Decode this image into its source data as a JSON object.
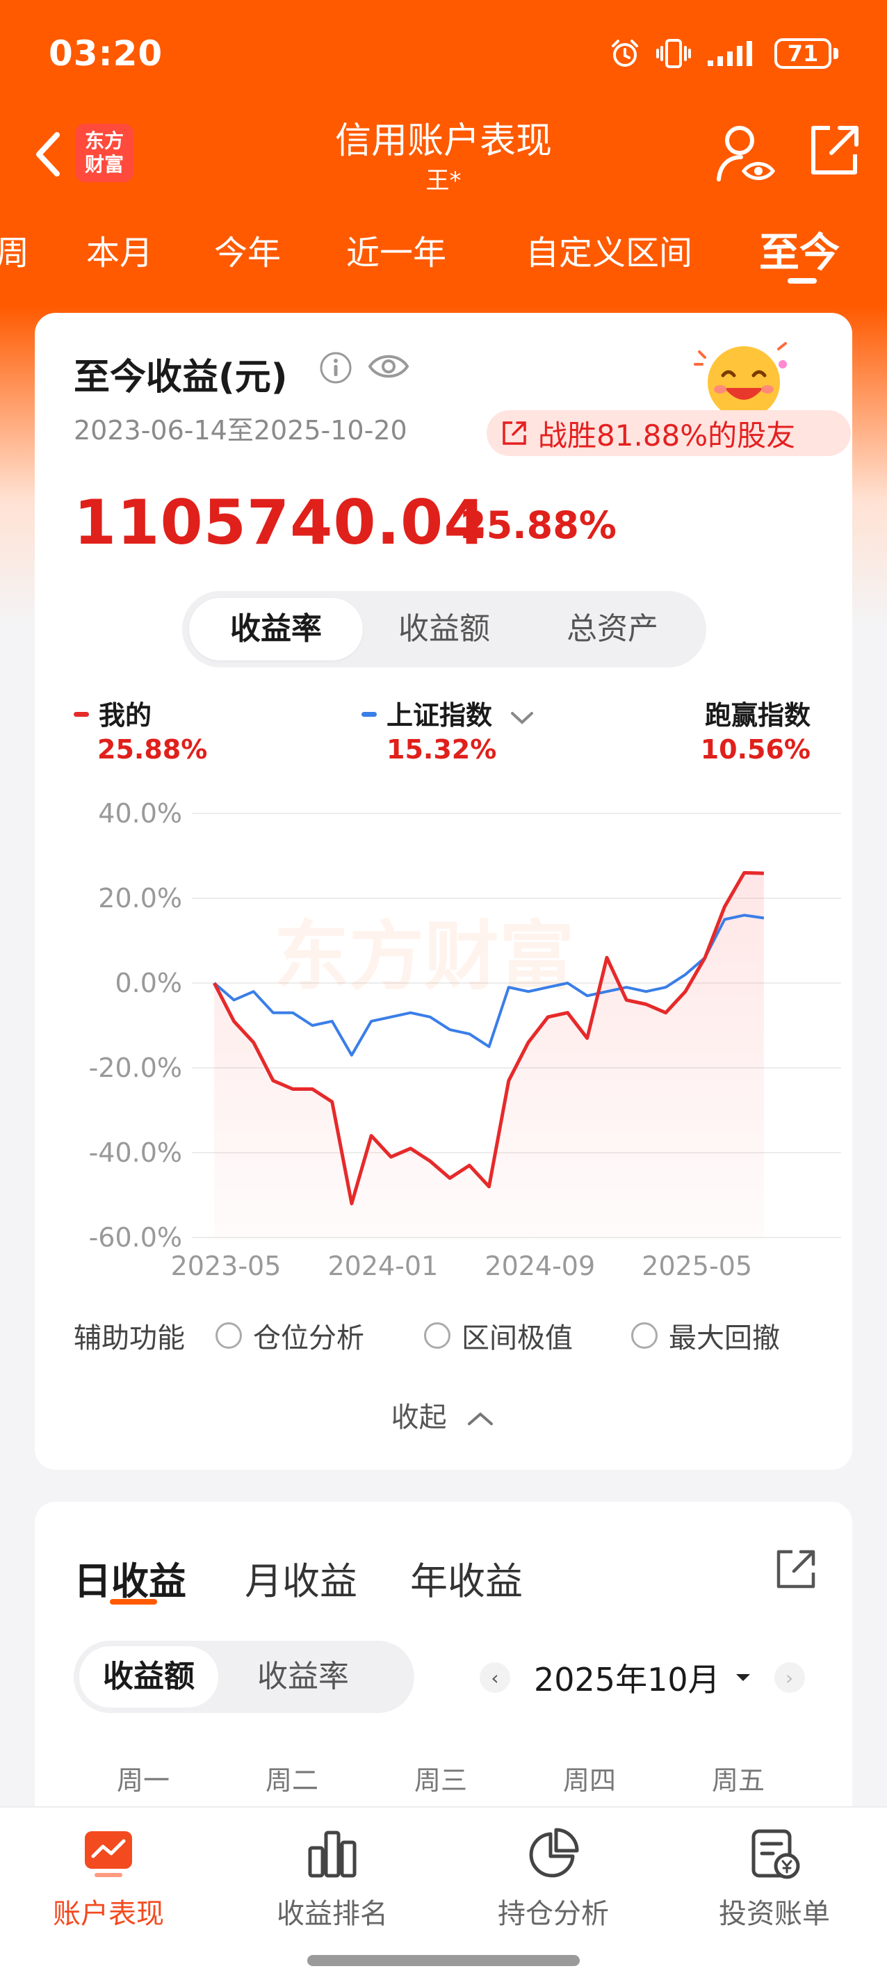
{
  "status_bar": {
    "time": "03:20",
    "battery": "71"
  },
  "header": {
    "logo_line1": "东方",
    "logo_line2": "财富",
    "title": "信用账户表现",
    "subtitle": "王*"
  },
  "period_tabs": [
    {
      "label": "周"
    },
    {
      "label": "本月"
    },
    {
      "label": "今年"
    },
    {
      "label": "近一年"
    },
    {
      "label": "自定义区间"
    },
    {
      "label": "至今",
      "active": true
    }
  ],
  "summary": {
    "title": "至今收益(元)",
    "date_range": "2023-06-14至2025-10-20",
    "beat_text": "战胜81.88%的股友",
    "amount": "1105740.04",
    "rate": "25.88%"
  },
  "chart_tabs": [
    {
      "label": "收益率",
      "active": true
    },
    {
      "label": "收益额"
    },
    {
      "label": "总资产"
    }
  ],
  "legend": {
    "mine": {
      "label": "我的",
      "value": "25.88%",
      "color": "#e62a2a"
    },
    "index": {
      "label": "上证指数",
      "value": "15.32%",
      "color": "#3a7ee8"
    },
    "outperform": {
      "label": "跑赢指数",
      "value": "10.56%"
    }
  },
  "watermark": "东方财富",
  "chart_data": {
    "type": "line",
    "x": [
      "2023-06",
      "2023-07",
      "2023-08",
      "2023-09",
      "2023-10",
      "2023-11",
      "2023-12",
      "2024-01",
      "2024-02",
      "2024-03",
      "2024-04",
      "2024-05",
      "2024-06",
      "2024-07",
      "2024-08",
      "2024-09",
      "2024-10",
      "2024-11",
      "2024-12",
      "2025-01",
      "2025-02",
      "2025-03",
      "2025-04",
      "2025-05",
      "2025-06",
      "2025-07",
      "2025-08",
      "2025-09",
      "2025-10"
    ],
    "series": [
      {
        "name": "我的",
        "color": "#e62a2a",
        "values": [
          0,
          -9,
          -14,
          -23,
          -25,
          -25,
          -28,
          -52,
          -36,
          -41,
          -39,
          -42,
          -46,
          -43,
          -48,
          -23,
          -14,
          -8,
          -7,
          -13,
          6,
          -4,
          -5,
          -7,
          -2,
          6,
          18,
          26,
          25.88
        ]
      },
      {
        "name": "上证指数",
        "color": "#3a7ee8",
        "values": [
          0,
          -4,
          -2,
          -7,
          -7,
          -10,
          -9,
          -17,
          -9,
          -8,
          -7,
          -8,
          -11,
          -12,
          -15,
          -1,
          -2,
          -1,
          0,
          -3,
          -2,
          -1,
          -2,
          -1,
          2,
          6,
          15,
          16,
          15.32
        ]
      }
    ],
    "ylim": [
      -60,
      40
    ],
    "yticks": [
      "40.0%",
      "20.0%",
      "0.0%",
      "-20.0%",
      "-40.0%",
      "-60.0%"
    ],
    "xticks": [
      "2023-05",
      "2024-01",
      "2024-09",
      "2025-05"
    ],
    "grid": true
  },
  "aux": {
    "label": "辅助功能",
    "options": [
      "仓位分析",
      "区间极值",
      "最大回撤"
    ]
  },
  "collapse_label": "收起",
  "returns_tabs": [
    {
      "label": "日收益",
      "active": true
    },
    {
      "label": "月收益"
    },
    {
      "label": "年收益"
    }
  ],
  "returns_seg": [
    {
      "label": "收益额",
      "active": true
    },
    {
      "label": "收益率"
    }
  ],
  "month": "2025年10月",
  "weekdays": [
    "周一",
    "周二",
    "周三",
    "周四",
    "周五"
  ],
  "bottom_nav": [
    {
      "label": "账户表现",
      "active": true
    },
    {
      "label": "收益排名"
    },
    {
      "label": "持仓分析"
    },
    {
      "label": "投资账单"
    }
  ]
}
